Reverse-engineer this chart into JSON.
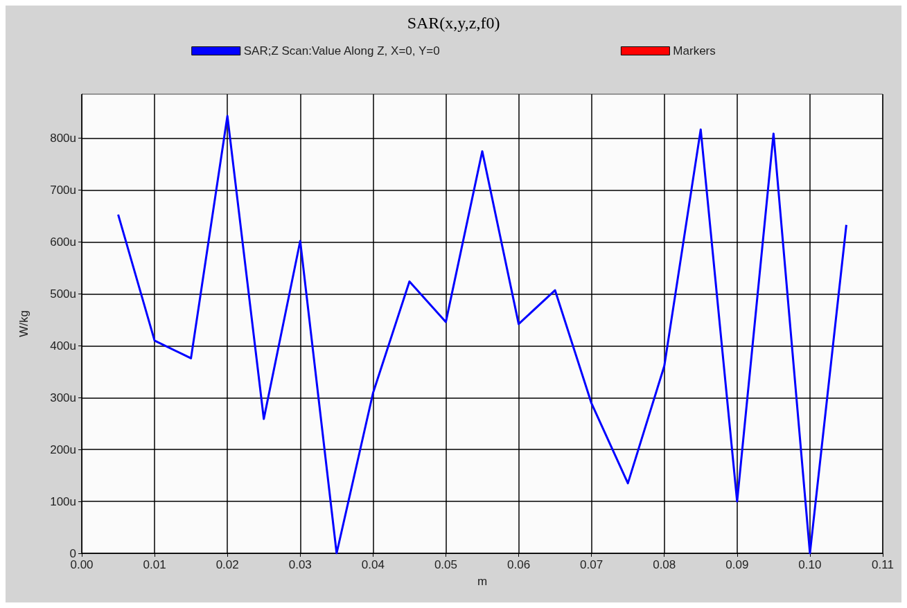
{
  "chart_data": {
    "type": "line",
    "title": "SAR(x,y,z,f0)",
    "xlabel": "m",
    "ylabel": "W/kg",
    "x": [
      0.005,
      0.01,
      0.015,
      0.02,
      0.025,
      0.03,
      0.035,
      0.04,
      0.045,
      0.05,
      0.055,
      0.06,
      0.065,
      0.07,
      0.075,
      0.08,
      0.085,
      0.09,
      0.095,
      0.1,
      0.105
    ],
    "series": [
      {
        "name": "SAR;Z Scan:Value Along Z, X=0, Y=0",
        "color": "#0000ff",
        "values": [
          653,
          410,
          376,
          843,
          259,
          602,
          0,
          309,
          524,
          446,
          775,
          442,
          507,
          289,
          135,
          361,
          817,
          100,
          809,
          0,
          633
        ]
      },
      {
        "name": "Markers",
        "color": "#ff0000",
        "values": [
          null,
          null,
          null,
          null,
          null,
          null,
          null,
          null,
          null,
          null,
          null,
          null,
          null,
          null,
          null,
          null,
          null,
          null,
          null,
          null,
          null
        ]
      }
    ],
    "xlim": [
      0,
      0.11
    ],
    "xticks": [
      {
        "value": 0,
        "label": "0.00"
      },
      {
        "value": 0.01,
        "label": "0.01"
      },
      {
        "value": 0.02,
        "label": "0.02"
      },
      {
        "value": 0.03,
        "label": "0.03"
      },
      {
        "value": 0.04,
        "label": "0.04"
      },
      {
        "value": 0.05,
        "label": "0.05"
      },
      {
        "value": 0.06,
        "label": "0.06"
      },
      {
        "value": 0.07,
        "label": "0.07"
      },
      {
        "value": 0.08,
        "label": "0.08"
      },
      {
        "value": 0.09,
        "label": "0.09"
      },
      {
        "value": 0.1,
        "label": "0.10"
      },
      {
        "value": 0.11,
        "label": "0.11"
      }
    ],
    "ylim": [
      0,
      885
    ],
    "yticks": [
      0,
      {
        "value": 100,
        "label": "100u"
      },
      {
        "value": 200,
        "label": "200u"
      },
      {
        "value": 300,
        "label": "300u"
      },
      {
        "value": 400,
        "label": "400u"
      },
      {
        "value": 500,
        "label": "500u"
      },
      {
        "value": 600,
        "label": "600u"
      },
      {
        "value": 700,
        "label": "700u"
      },
      {
        "value": 800,
        "label": "800u"
      }
    ],
    "grid": true,
    "legend": "top",
    "marker": "none",
    "line_style": "solid"
  }
}
